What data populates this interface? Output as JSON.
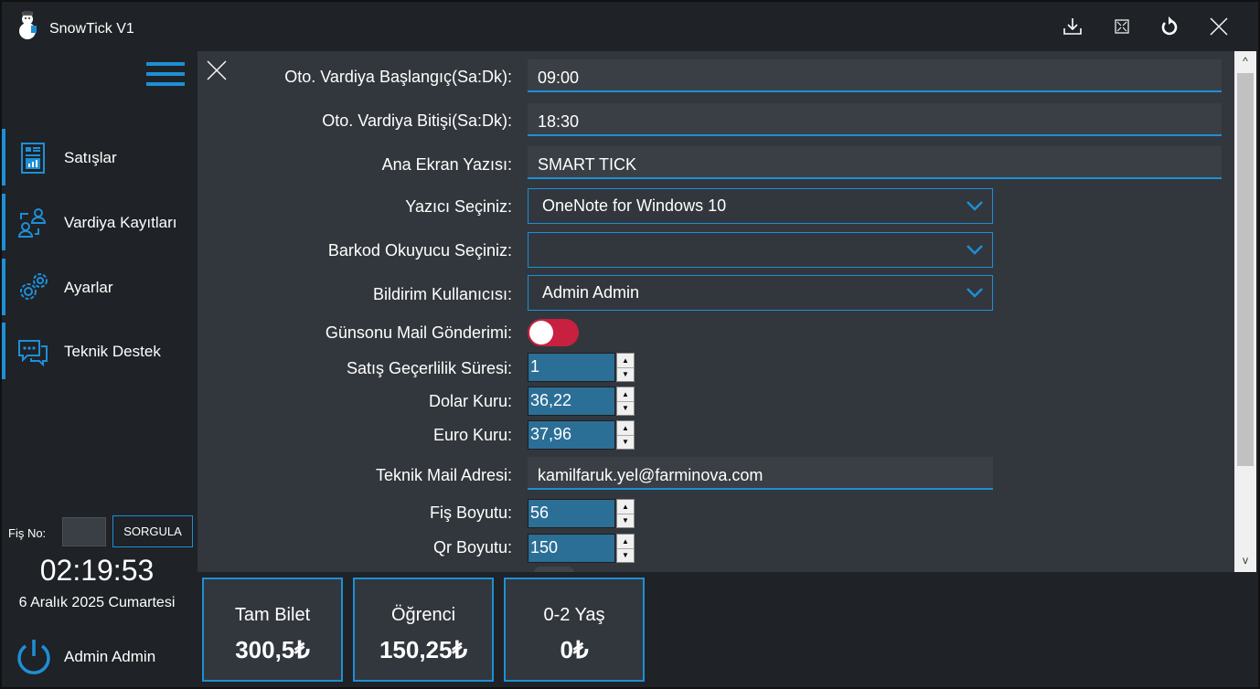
{
  "app": {
    "title": "SnowTick V1"
  },
  "titlebar_icons": [
    "download-icon",
    "fullscreen-icon",
    "refresh-icon",
    "close-icon"
  ],
  "sidebar": {
    "items": [
      {
        "label": "Satışlar",
        "icon": "sales-report-icon"
      },
      {
        "label": "Vardiya Kayıtları",
        "icon": "shift-users-icon"
      },
      {
        "label": "Ayarlar",
        "icon": "gears-icon"
      },
      {
        "label": "Teknik Destek",
        "icon": "chat-support-icon"
      }
    ],
    "fis_label": "Fiş No:",
    "fis_value": "",
    "sorgula_label": "SORGULA",
    "time": "02:19:53",
    "date": "6 Aralık 2025 Cumartesi",
    "user": "Admin Admin"
  },
  "settings": {
    "shift_start": {
      "label": "Oto. Vardiya Başlangıç(Sa:Dk):",
      "value": "09:00"
    },
    "shift_end": {
      "label": "Oto. Vardiya Bitişi(Sa:Dk):",
      "value": "18:30"
    },
    "home_text": {
      "label": "Ana Ekran Yazısı:",
      "value": "SMART TICK"
    },
    "printer": {
      "label": "Yazıcı Seçiniz:",
      "value": "OneNote for Windows 10"
    },
    "barcode": {
      "label": "Barkod Okuyucu Seçiniz:",
      "value": ""
    },
    "notify_user": {
      "label": "Bildirim Kullanıcısı:",
      "value": "Admin Admin"
    },
    "eod_mail": {
      "label": "Günsonu Mail Gönderimi:",
      "enabled": true
    },
    "validity": {
      "label": "Satış Geçerlilik Süresi:",
      "value": "1"
    },
    "dollar": {
      "label": "Dolar Kuru:",
      "value": "36,22"
    },
    "euro": {
      "label": "Euro Kuru:",
      "value": "37,96"
    },
    "tech_mail": {
      "label": "Teknik Mail Adresi:",
      "value": "kamilfaruk.yel@farminova.com"
    },
    "receipt_size": {
      "label": "Fiş Boyutu:",
      "value": "56"
    },
    "qr_size": {
      "label": "Qr Boyutu:",
      "value": "150"
    }
  },
  "colors": {
    "accent": "#1e8fd6",
    "toggle_on": "#c8203f",
    "panel": "#32373d",
    "background": "#1f2226"
  },
  "tickets": [
    {
      "name": "Tam Bilet",
      "price": "300,5₺"
    },
    {
      "name": "Öğrenci",
      "price": "150,25₺"
    },
    {
      "name": "0-2 Yaş",
      "price": "0₺"
    }
  ]
}
